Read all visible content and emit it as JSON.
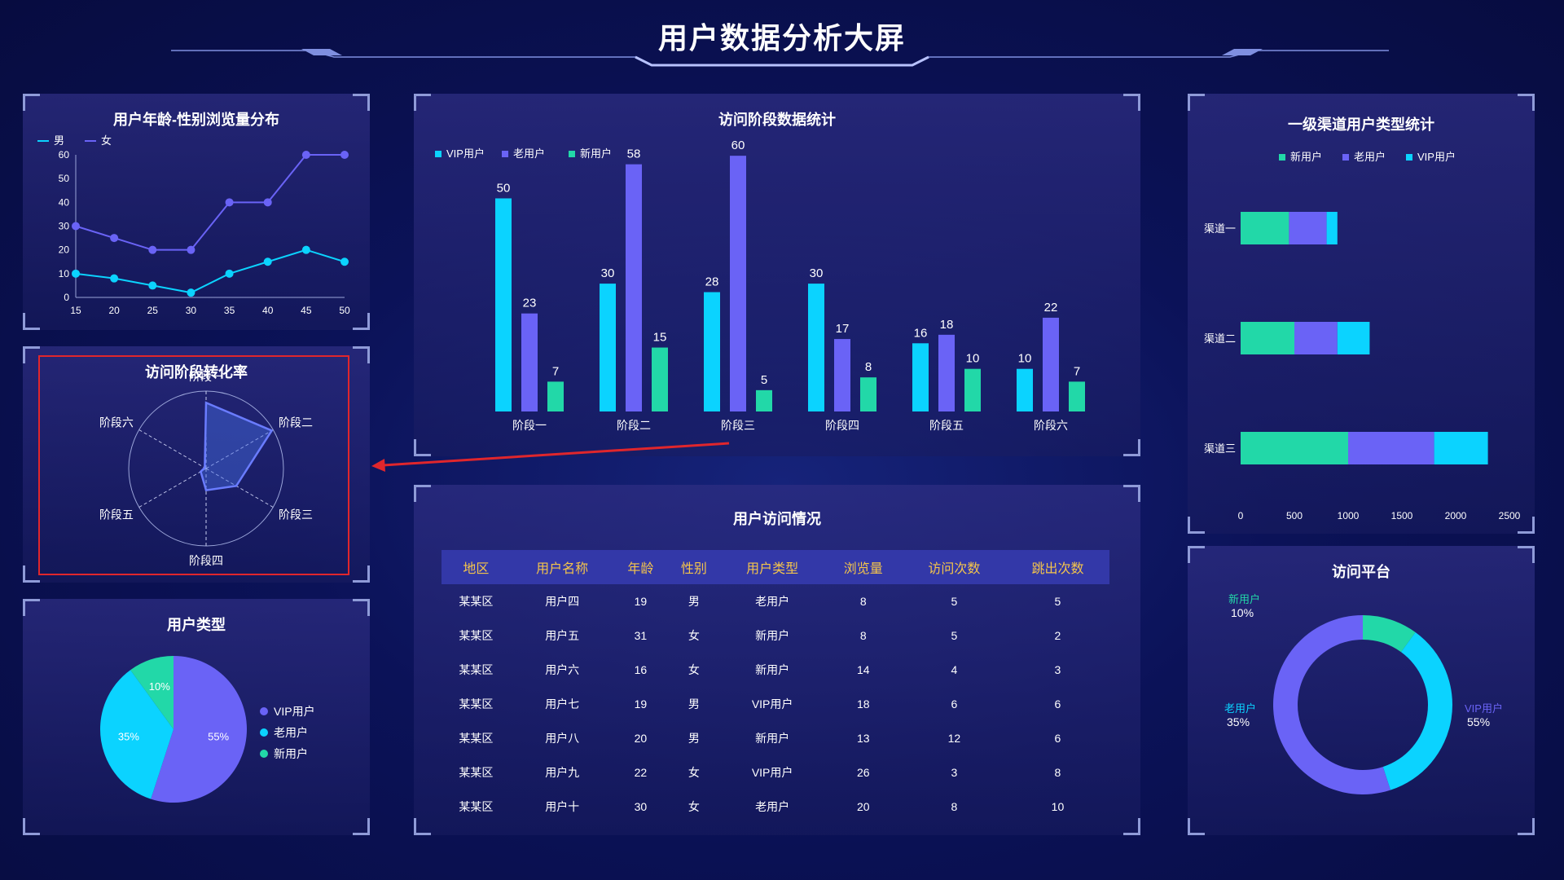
{
  "header": {
    "title": "用户数据分析大屏"
  },
  "colors": {
    "vip": "#0bd3ff",
    "old": "#6a63f6",
    "new": "#22d8a8",
    "male": "#0bd3ff",
    "female": "#6a63f6",
    "accent_frame": "#8f9bd8"
  },
  "panels": {
    "age_gender": {
      "title": "用户年龄-性别浏览量分布"
    },
    "radar": {
      "title": "访问阶段转化率"
    },
    "user_type": {
      "title": "用户类型"
    },
    "stage_stats": {
      "title": "访问阶段数据统计"
    },
    "access_table": {
      "title": "用户访问情况"
    },
    "channel": {
      "title": "一级渠道用户类型统计"
    },
    "platform": {
      "title": "访问平台"
    }
  },
  "chart_data": [
    {
      "id": "age_gender",
      "type": "line",
      "title": "用户年龄-性别浏览量分布",
      "x": [
        15,
        20,
        25,
        30,
        35,
        40,
        45,
        50
      ],
      "series": [
        {
          "name": "男",
          "values": [
            10,
            8,
            5,
            2,
            10,
            15,
            20,
            15
          ]
        },
        {
          "name": "女",
          "values": [
            30,
            25,
            20,
            20,
            40,
            40,
            60,
            60
          ]
        }
      ],
      "xticks": [
        "15",
        "20",
        "25",
        "30",
        "35",
        "40",
        "45",
        "50"
      ],
      "yticks": [
        "0",
        "10",
        "20",
        "30",
        "40",
        "50",
        "60"
      ],
      "ylim": [
        0,
        60
      ],
      "legend": "top-left"
    },
    {
      "id": "radar",
      "type": "radar",
      "title": "访问阶段转化率",
      "categories": [
        "阶段一",
        "阶段二",
        "阶段三",
        "阶段四",
        "阶段五",
        "阶段六"
      ],
      "values": [
        0.85,
        0.98,
        0.45,
        0.28,
        0.08,
        0.02
      ],
      "max": 1
    },
    {
      "id": "user_type",
      "type": "pie",
      "title": "用户类型",
      "categories": [
        "VIP用户",
        "老用户",
        "新用户"
      ],
      "values": [
        55,
        35,
        10
      ],
      "labels": [
        "55%",
        "35%",
        "10%"
      ],
      "legend": "right"
    },
    {
      "id": "stage_stats",
      "type": "bar",
      "title": "访问阶段数据统计",
      "categories": [
        "阶段一",
        "阶段二",
        "阶段三",
        "阶段四",
        "阶段五",
        "阶段六"
      ],
      "series": [
        {
          "name": "VIP用户",
          "values": [
            50,
            30,
            28,
            30,
            16,
            10
          ]
        },
        {
          "name": "老用户",
          "values": [
            23,
            58,
            60,
            17,
            18,
            22
          ]
        },
        {
          "name": "新用户",
          "values": [
            7,
            15,
            5,
            8,
            10,
            7
          ]
        }
      ],
      "ylim": [
        0,
        65
      ],
      "legend": "top-left"
    },
    {
      "id": "channel",
      "type": "bar",
      "orientation": "horizontal",
      "stacked": true,
      "title": "一级渠道用户类型统计",
      "categories": [
        "渠道一",
        "渠道二",
        "渠道三"
      ],
      "series": [
        {
          "name": "新用户",
          "values": [
            450,
            500,
            1000
          ]
        },
        {
          "name": "老用户",
          "values": [
            350,
            400,
            800
          ]
        },
        {
          "name": "VIP用户",
          "values": [
            100,
            300,
            500
          ]
        }
      ],
      "xticks": [
        "0",
        "500",
        "1000",
        "1500",
        "2000",
        "2500"
      ],
      "xlim": [
        0,
        2500
      ],
      "legend": "top"
    },
    {
      "id": "platform",
      "type": "pie",
      "variant": "donut",
      "title": "访问平台",
      "categories": [
        "新用户",
        "老用户",
        "VIP用户"
      ],
      "values": [
        10,
        35,
        55
      ],
      "labels": [
        "10%",
        "35%",
        "55%"
      ]
    }
  ],
  "access_table": {
    "columns": [
      "地区",
      "用户名称",
      "年龄",
      "性别",
      "用户类型",
      "浏览量",
      "访问次数",
      "跳出次数"
    ],
    "rows": [
      [
        "某某区",
        "用户四",
        "19",
        "男",
        "老用户",
        "8",
        "5",
        "5"
      ],
      [
        "某某区",
        "用户五",
        "31",
        "女",
        "新用户",
        "8",
        "5",
        "2"
      ],
      [
        "某某区",
        "用户六",
        "16",
        "女",
        "新用户",
        "14",
        "4",
        "3"
      ],
      [
        "某某区",
        "用户七",
        "19",
        "男",
        "VIP用户",
        "18",
        "6",
        "6"
      ],
      [
        "某某区",
        "用户八",
        "20",
        "男",
        "新用户",
        "13",
        "12",
        "6"
      ],
      [
        "某某区",
        "用户九",
        "22",
        "女",
        "VIP用户",
        "26",
        "3",
        "8"
      ],
      [
        "某某区",
        "用户十",
        "30",
        "女",
        "老用户",
        "20",
        "8",
        "10"
      ]
    ]
  }
}
